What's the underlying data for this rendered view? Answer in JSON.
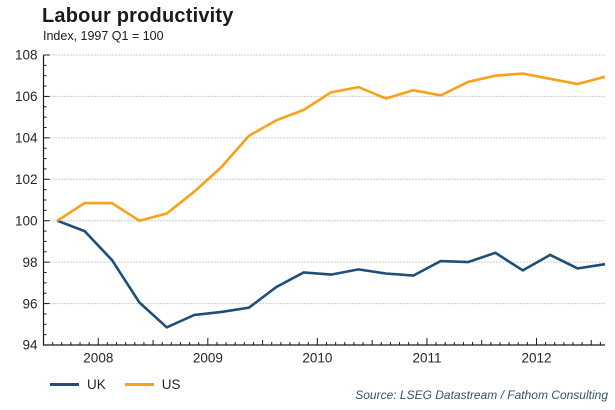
{
  "title": "Labour productivity",
  "subtitle": "Index, 1997 Q1 = 100",
  "source": "Source: LSEG Datastream / Fathom Consulting",
  "legend": [
    {
      "label": "UK",
      "color": "#1f4e79"
    },
    {
      "label": "US",
      "color": "#f9a11b"
    }
  ],
  "colors": {
    "uk_line": "#1f4e79",
    "us_line": "#f9a11b",
    "gridline": "#9a9a9a",
    "axis": "#1a1a1a",
    "source_text": "#36536d"
  },
  "chart_data": {
    "type": "line",
    "title": "Labour productivity",
    "subtitle": "Index, 1997 Q1 = 100",
    "x": [
      "2007 Q3",
      "2007 Q4",
      "2008 Q1",
      "2008 Q2",
      "2008 Q3",
      "2008 Q4",
      "2009 Q1",
      "2009 Q2",
      "2009 Q3",
      "2009 Q4",
      "2010 Q1",
      "2010 Q2",
      "2010 Q3",
      "2010 Q4",
      "2011 Q1",
      "2011 Q2",
      "2011 Q3",
      "2011 Q4",
      "2012 Q1",
      "2012 Q2",
      "2012 Q3"
    ],
    "series": [
      {
        "name": "UK",
        "color": "#1f4e79",
        "values": [
          100.0,
          99.5,
          98.1,
          96.05,
          94.85,
          95.45,
          95.6,
          95.8,
          96.8,
          97.5,
          97.4,
          97.65,
          97.45,
          97.35,
          98.05,
          98.0,
          98.45,
          97.6,
          98.35,
          97.7,
          97.9
        ]
      },
      {
        "name": "US",
        "color": "#f9a11b",
        "values": [
          100.0,
          100.85,
          100.85,
          100.0,
          100.35,
          101.4,
          102.6,
          104.1,
          104.85,
          105.35,
          106.2,
          106.45,
          105.9,
          106.3,
          106.05,
          106.7,
          107.0,
          107.1,
          106.85,
          106.6,
          106.95
        ]
      }
    ],
    "ylim": [
      94,
      108
    ],
    "ytick_step": 2,
    "ytick_labels": [
      94,
      96,
      98,
      100,
      102,
      104,
      106,
      108
    ],
    "xtick_years": [
      "2008",
      "2009",
      "2010",
      "2011",
      "2012"
    ],
    "grid": "horizontal-dotted",
    "legend_position": "bottom-left"
  }
}
